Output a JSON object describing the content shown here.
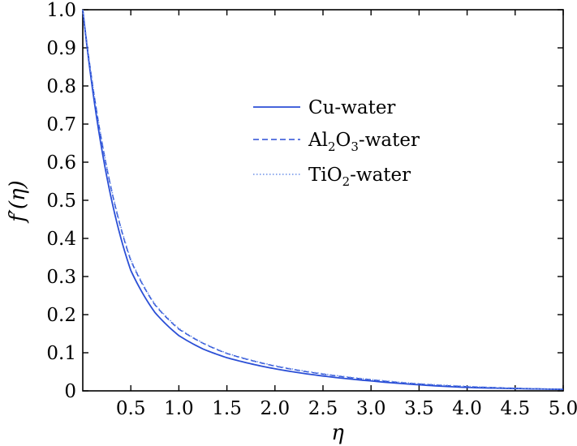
{
  "chart_data": {
    "type": "line",
    "xlabel": "η",
    "ylabel": "f′(η)",
    "xlim": [
      0,
      5.0
    ],
    "ylim": [
      0,
      1.0
    ],
    "x_ticks": [
      "0.5",
      "1.0",
      "1.5",
      "2.0",
      "2.5",
      "3.0",
      "3.5",
      "4.0",
      "4.5",
      "5.0"
    ],
    "y_ticks": [
      "0",
      "0.1",
      "0.2",
      "0.3",
      "0.4",
      "0.5",
      "0.6",
      "0.7",
      "0.8",
      "0.9",
      "1.0"
    ],
    "grid": false,
    "legend_position": "upper-right",
    "x": [
      0,
      0.25,
      0.5,
      0.75,
      1.0,
      1.25,
      1.5,
      1.75,
      2.0,
      2.5,
      3.0,
      3.5,
      4.0,
      4.5,
      5.0
    ],
    "series": [
      {
        "name": "Cu-water",
        "name_main": "Cu-water",
        "line_style": "solid",
        "color": "#2b4fd6",
        "values": [
          1.0,
          0.562,
          0.316,
          0.206,
          0.145,
          0.11,
          0.087,
          0.071,
          0.058,
          0.039,
          0.026,
          0.016,
          0.009,
          0.006,
          0.004
        ]
      },
      {
        "name": "Al2O3-water",
        "name_parts": [
          "Al",
          "2",
          "O",
          "3",
          "-water"
        ],
        "line_style": "dashed",
        "color": "#2b4fd6",
        "values": [
          1.0,
          0.585,
          0.342,
          0.226,
          0.162,
          0.125,
          0.098,
          0.08,
          0.065,
          0.044,
          0.029,
          0.018,
          0.011,
          0.007,
          0.004
        ]
      },
      {
        "name": "TiO2-water",
        "name_parts": [
          "TiO",
          "2",
          "-water"
        ],
        "line_style": "dotted",
        "color": "#6b8fe8",
        "values": [
          1.0,
          0.588,
          0.345,
          0.228,
          0.164,
          0.126,
          0.099,
          0.081,
          0.066,
          0.045,
          0.03,
          0.019,
          0.012,
          0.007,
          0.004
        ]
      }
    ]
  }
}
